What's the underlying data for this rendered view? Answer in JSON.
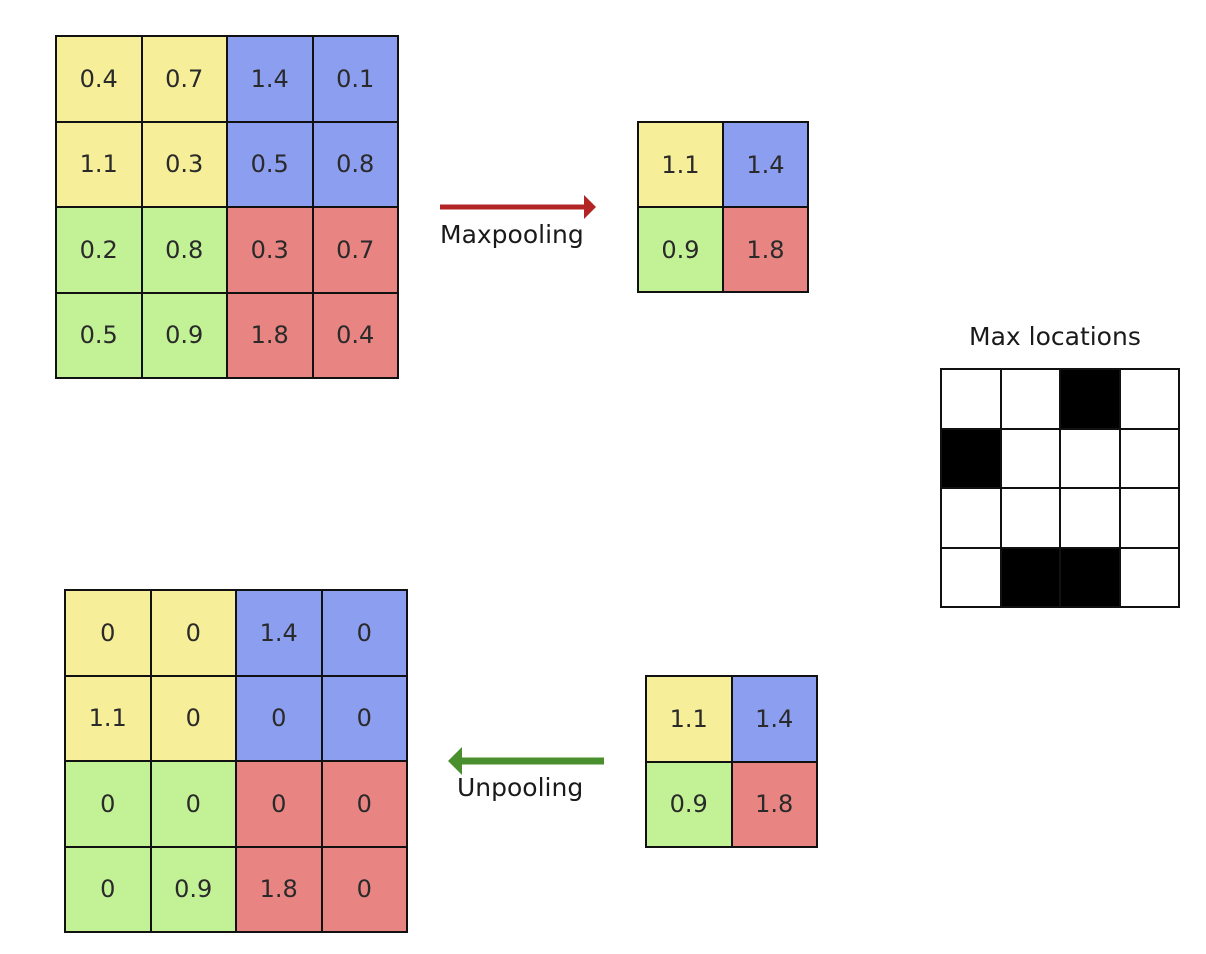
{
  "input_grid": {
    "cells": [
      {
        "value": "0.4",
        "color": "#f6ee98"
      },
      {
        "value": "0.7",
        "color": "#f6ee98"
      },
      {
        "value": "1.4",
        "color": "#8c9ef0"
      },
      {
        "value": "0.1",
        "color": "#8c9ef0"
      },
      {
        "value": "1.1",
        "color": "#f6ee98"
      },
      {
        "value": "0.3",
        "color": "#f6ee98"
      },
      {
        "value": "0.5",
        "color": "#8c9ef0"
      },
      {
        "value": "0.8",
        "color": "#8c9ef0"
      },
      {
        "value": "0.2",
        "color": "#c3f296"
      },
      {
        "value": "0.8",
        "color": "#c3f296"
      },
      {
        "value": "0.3",
        "color": "#e88582"
      },
      {
        "value": "0.7",
        "color": "#e88582"
      },
      {
        "value": "0.5",
        "color": "#c3f296"
      },
      {
        "value": "0.9",
        "color": "#c3f296"
      },
      {
        "value": "1.8",
        "color": "#e88582"
      },
      {
        "value": "0.4",
        "color": "#e88582"
      }
    ]
  },
  "maxpool_arrow": {
    "label": "Maxpooling",
    "color": "#b32424"
  },
  "pooled_grid": {
    "cells": [
      {
        "value": "1.1",
        "color": "#f6ee98"
      },
      {
        "value": "1.4",
        "color": "#8c9ef0"
      },
      {
        "value": "0.9",
        "color": "#c3f296"
      },
      {
        "value": "1.8",
        "color": "#e88582"
      }
    ]
  },
  "max_locations": {
    "title": "Max locations",
    "mask": [
      [
        0,
        0,
        1,
        0
      ],
      [
        1,
        0,
        0,
        0
      ],
      [
        0,
        0,
        0,
        0
      ],
      [
        0,
        1,
        1,
        0
      ]
    ],
    "on_color": "#000000",
    "off_color": "#ffffff"
  },
  "pooled_grid_2": {
    "cells": [
      {
        "value": "1.1",
        "color": "#f6ee98"
      },
      {
        "value": "1.4",
        "color": "#8c9ef0"
      },
      {
        "value": "0.9",
        "color": "#c3f296"
      },
      {
        "value": "1.8",
        "color": "#e88582"
      }
    ]
  },
  "unpool_arrow": {
    "label": "Unpooling",
    "color": "#4a8f2e"
  },
  "unpooled_grid": {
    "cells": [
      {
        "value": "0",
        "color": "#f6ee98"
      },
      {
        "value": "0",
        "color": "#f6ee98"
      },
      {
        "value": "1.4",
        "color": "#8c9ef0"
      },
      {
        "value": "0",
        "color": "#8c9ef0"
      },
      {
        "value": "1.1",
        "color": "#f6ee98"
      },
      {
        "value": "0",
        "color": "#f6ee98"
      },
      {
        "value": "0",
        "color": "#8c9ef0"
      },
      {
        "value": "0",
        "color": "#8c9ef0"
      },
      {
        "value": "0",
        "color": "#c3f296"
      },
      {
        "value": "0",
        "color": "#c3f296"
      },
      {
        "value": "0",
        "color": "#e88582"
      },
      {
        "value": "0",
        "color": "#e88582"
      },
      {
        "value": "0",
        "color": "#c3f296"
      },
      {
        "value": "0.9",
        "color": "#c3f296"
      },
      {
        "value": "1.8",
        "color": "#e88582"
      },
      {
        "value": "0",
        "color": "#e88582"
      }
    ]
  }
}
